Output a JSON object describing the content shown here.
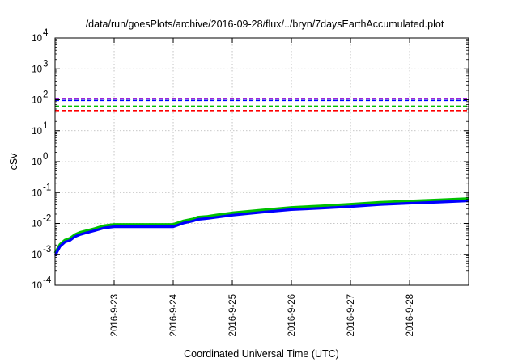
{
  "chart_data": {
    "type": "line",
    "title": "/data/run/goesPlots/archive/2016-09-28/flux/../bryn/7daysEarthAccumulated.plot",
    "xlabel": "Coordinated Universal Time (UTC)",
    "ylabel": "cSv",
    "yscale": "log",
    "ylim": [
      0.0001,
      10000
    ],
    "xlim": [
      "2016-09-22T00:00",
      "2016-09-28T23:59"
    ],
    "grid": true,
    "legend": "none",
    "y_ticks": [
      {
        "value": 0.0001,
        "base": "10",
        "exp": "-4"
      },
      {
        "value": 0.001,
        "base": "10",
        "exp": "-3"
      },
      {
        "value": 0.01,
        "base": "10",
        "exp": "-2"
      },
      {
        "value": 0.1,
        "base": "10",
        "exp": "-1"
      },
      {
        "value": 1,
        "base": "10",
        "exp": "0"
      },
      {
        "value": 10,
        "base": "10",
        "exp": "1"
      },
      {
        "value": 100,
        "base": "10",
        "exp": "2"
      },
      {
        "value": 1000,
        "base": "10",
        "exp": "3"
      },
      {
        "value": 10000,
        "base": "10",
        "exp": "4"
      }
    ],
    "x_ticks": [
      {
        "value": "2016-09-23T00:00",
        "label": "2016-9-23"
      },
      {
        "value": "2016-09-24T00:00",
        "label": "2016-9-24"
      },
      {
        "value": "2016-09-25T00:00",
        "label": "2016-9-25"
      },
      {
        "value": "2016-09-26T00:00",
        "label": "2016-9-26"
      },
      {
        "value": "2016-09-27T00:00",
        "label": "2016-9-27"
      },
      {
        "value": "2016-09-28T00:00",
        "label": "2016-9-28"
      }
    ],
    "reference_lines": [
      {
        "y": 110,
        "color": "#9400d3"
      },
      {
        "y": 95,
        "color": "#0000ff"
      },
      {
        "y": 62,
        "color": "#00c000"
      },
      {
        "y": 45,
        "color": "#ff0000"
      }
    ],
    "series": [
      {
        "color": "#00c000",
        "x": [
          "2016-09-22T00:00",
          "2016-09-22T02:00",
          "2016-09-22T04:00",
          "2016-09-22T06:00",
          "2016-09-22T08:00",
          "2016-09-22T10:00",
          "2016-09-22T12:00",
          "2016-09-22T16:00",
          "2016-09-22T20:00",
          "2016-09-23T00:00",
          "2016-09-23T06:00",
          "2016-09-23T12:00",
          "2016-09-23T18:00",
          "2016-09-24T00:00",
          "2016-09-24T04:00",
          "2016-09-24T08:00",
          "2016-09-24T10:00",
          "2016-09-24T14:00",
          "2016-09-24T18:00",
          "2016-09-25T00:00",
          "2016-09-25T12:00",
          "2016-09-26T00:00",
          "2016-09-26T12:00",
          "2016-09-27T00:00",
          "2016-09-27T12:00",
          "2016-09-28T00:00",
          "2016-09-28T12:00",
          "2016-09-28T23:59"
        ],
        "y": [
          0.0011,
          0.0021,
          0.0029,
          0.0033,
          0.0043,
          0.0051,
          0.0056,
          0.0068,
          0.0085,
          0.0093,
          0.0093,
          0.0093,
          0.0093,
          0.0093,
          0.012,
          0.014,
          0.016,
          0.017,
          0.019,
          0.022,
          0.027,
          0.033,
          0.037,
          0.042,
          0.048,
          0.053,
          0.058,
          0.064
        ]
      },
      {
        "color": "#0000ff",
        "x": [
          "2016-09-22T00:00",
          "2016-09-22T02:00",
          "2016-09-22T04:00",
          "2016-09-22T06:00",
          "2016-09-22T08:00",
          "2016-09-22T10:00",
          "2016-09-22T12:00",
          "2016-09-22T16:00",
          "2016-09-22T20:00",
          "2016-09-23T00:00",
          "2016-09-23T06:00",
          "2016-09-23T12:00",
          "2016-09-23T18:00",
          "2016-09-24T00:00",
          "2016-09-24T04:00",
          "2016-09-24T08:00",
          "2016-09-24T10:00",
          "2016-09-24T14:00",
          "2016-09-24T18:00",
          "2016-09-25T00:00",
          "2016-09-25T12:00",
          "2016-09-26T00:00",
          "2016-09-26T12:00",
          "2016-09-27T00:00",
          "2016-09-27T12:00",
          "2016-09-28T00:00",
          "2016-09-28T12:00",
          "2016-09-28T23:59"
        ],
        "y": [
          0.0009,
          0.0018,
          0.0025,
          0.0028,
          0.0037,
          0.0043,
          0.0048,
          0.0058,
          0.0072,
          0.0078,
          0.0078,
          0.0078,
          0.0078,
          0.0078,
          0.0102,
          0.012,
          0.0135,
          0.0145,
          0.016,
          0.0185,
          0.023,
          0.028,
          0.031,
          0.035,
          0.041,
          0.045,
          0.049,
          0.054
        ]
      }
    ]
  }
}
